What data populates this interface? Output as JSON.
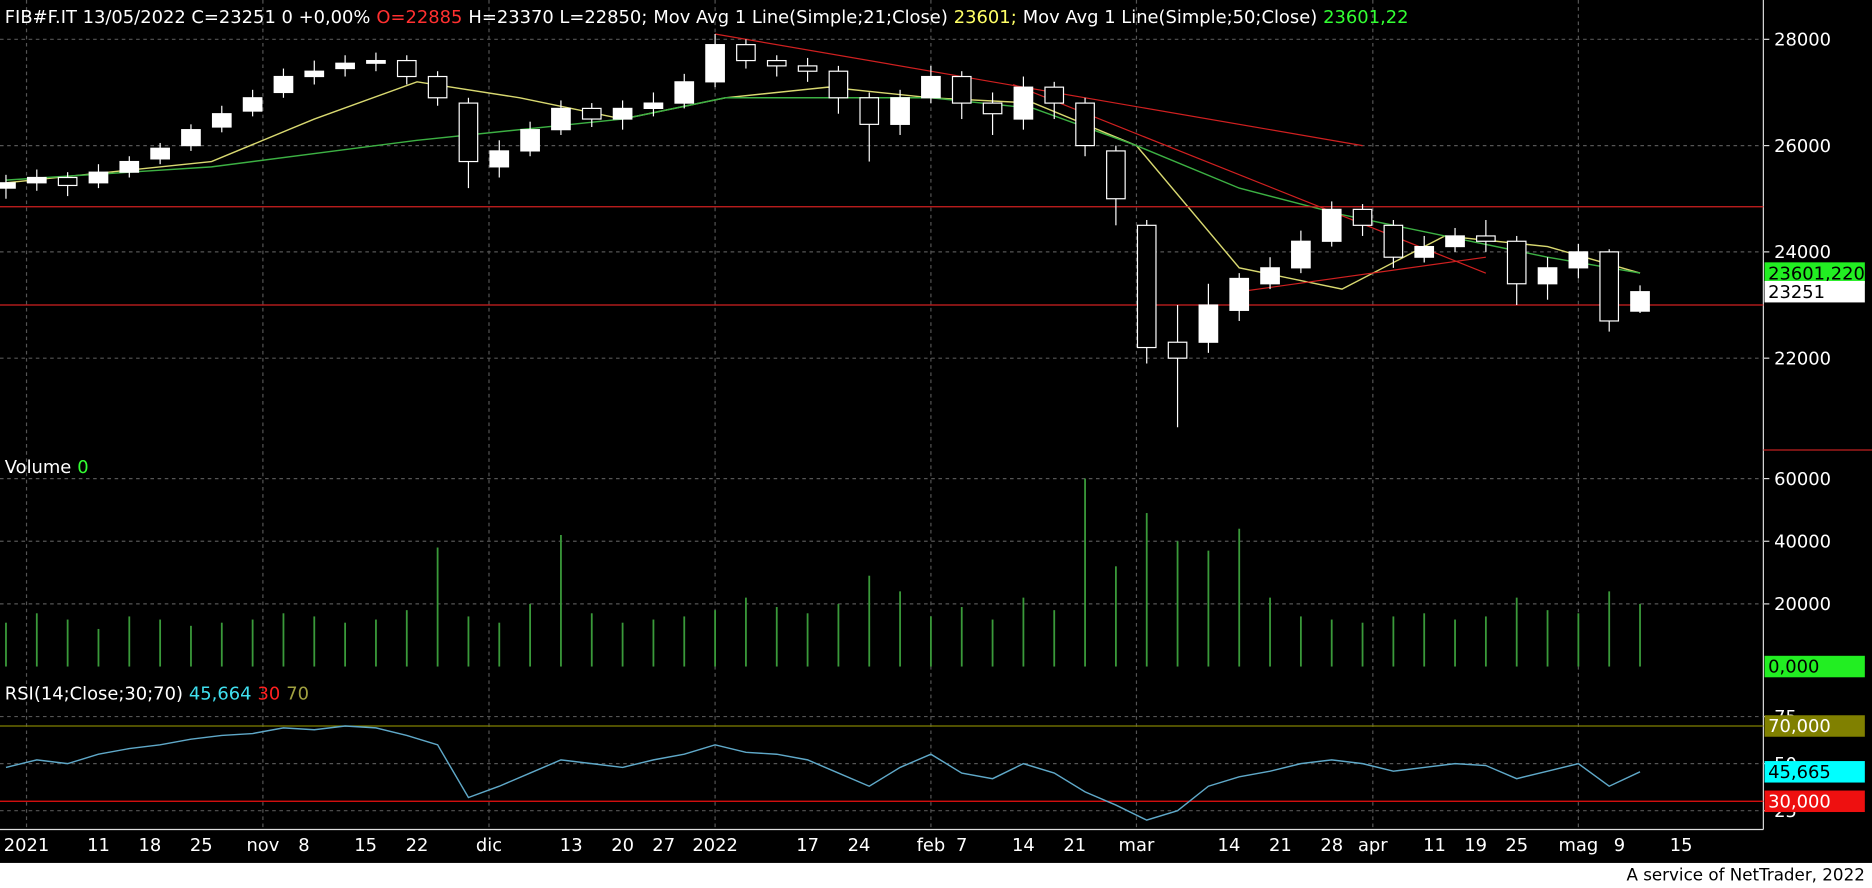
{
  "chart_data": [
    {
      "type": "candlestick",
      "title_parts": [
        {
          "text": "FIB#F.IT 13/05/2022 C=23251 0 +0,00%",
          "color": "#ffffff"
        },
        {
          "text": "O=22885",
          "color": "#ff3030"
        },
        {
          "text": "H=23370 L=22850;",
          "color": "#ffffff"
        },
        {
          "text": "Mov Avg 1 Line(Simple;21;Close)",
          "color": "#ffffff"
        },
        {
          "text": "23601;",
          "color": "#ffff66"
        },
        {
          "text": "Mov Avg 1 Line(Simple;50;Close)",
          "color": "#ffffff"
        },
        {
          "text": "23601,22",
          "color": "#33ff33"
        }
      ],
      "xlim": [
        0,
        171
      ],
      "ylim": [
        20250,
        28740
      ],
      "yticks": [
        22000,
        24000,
        26000,
        28000
      ],
      "x": [
        0,
        3,
        6,
        9,
        12,
        15,
        18,
        21,
        24,
        27,
        30,
        33,
        36,
        39,
        42,
        45,
        48,
        51,
        54,
        57,
        60,
        63,
        66,
        69,
        72,
        75,
        78,
        81,
        84,
        87,
        90,
        93,
        96,
        99,
        102,
        105,
        108,
        111,
        114,
        117,
        120,
        123,
        126,
        129,
        132,
        135,
        138,
        141,
        144,
        147,
        150,
        153,
        156,
        159
      ],
      "open": [
        25200,
        25300,
        25400,
        25300,
        25500,
        25750,
        26000,
        26350,
        26650,
        27000,
        27300,
        27450,
        27550,
        27600,
        27300,
        26800,
        25600,
        25900,
        26300,
        26700,
        26500,
        26700,
        26800,
        27200,
        27900,
        27600,
        27500,
        27400,
        26900,
        26400,
        26900,
        27300,
        26800,
        26500,
        27100,
        26800,
        25900,
        24500,
        22300,
        22300,
        22900,
        23400,
        23700,
        24200,
        24800,
        24500,
        23900,
        24100,
        24300,
        24200,
        23400,
        23700,
        24000,
        22885
      ],
      "high": [
        25450,
        25550,
        25500,
        25650,
        25800,
        26050,
        26400,
        26750,
        27050,
        27450,
        27600,
        27700,
        27750,
        27700,
        27400,
        26900,
        26100,
        26450,
        26850,
        26800,
        26850,
        27000,
        27350,
        28100,
        28000,
        27700,
        27650,
        27500,
        27000,
        27050,
        27500,
        27400,
        27000,
        27300,
        27200,
        26900,
        26000,
        24600,
        23000,
        23400,
        23600,
        23900,
        24400,
        24950,
        24900,
        24600,
        24300,
        24450,
        24600,
        24300,
        23900,
        24150,
        24050,
        23370
      ],
      "low": [
        25000,
        25150,
        25050,
        25200,
        25400,
        25650,
        25900,
        26250,
        26550,
        26900,
        27150,
        27300,
        27400,
        27150,
        26750,
        25200,
        25400,
        25800,
        26200,
        26350,
        26300,
        26550,
        26700,
        27100,
        27450,
        27300,
        27200,
        26600,
        25700,
        26200,
        26800,
        26500,
        26200,
        26300,
        26500,
        25800,
        24500,
        21900,
        20700,
        22100,
        22700,
        23300,
        23600,
        24100,
        24300,
        23700,
        23800,
        24000,
        24000,
        23000,
        23100,
        23500,
        22500,
        22850
      ],
      "close": [
        25300,
        25400,
        25250,
        25500,
        25700,
        25950,
        26300,
        26600,
        26900,
        27300,
        27400,
        27550,
        27600,
        27300,
        26900,
        25700,
        25900,
        26300,
        26700,
        26500,
        26700,
        26800,
        27200,
        27900,
        27600,
        27500,
        27400,
        26900,
        26400,
        26900,
        27300,
        26800,
        26600,
        27100,
        26800,
        26000,
        25000,
        22200,
        22000,
        23000,
        23500,
        23700,
        24200,
        24800,
        24500,
        23900,
        24100,
        24300,
        24200,
        23400,
        23700,
        24000,
        22700,
        23251
      ],
      "series": [
        {
          "color": "#d8d870",
          "x": [
            0,
            10,
            20,
            30,
            40,
            50,
            60,
            70,
            80,
            90,
            100,
            110,
            120,
            130,
            140,
            150,
            159
          ],
          "values": [
            25300,
            25500,
            25700,
            26500,
            27200,
            26900,
            26500,
            26900,
            27100,
            26900,
            26800,
            26000,
            23700,
            23300,
            24300,
            24100,
            23601
          ]
        },
        {
          "color": "#3cb043",
          "x": [
            0,
            20,
            40,
            60,
            70,
            90,
            100,
            110,
            120,
            130,
            140,
            150,
            159
          ],
          "values": [
            25350,
            25600,
            26100,
            26500,
            26900,
            26900,
            26700,
            26000,
            25200,
            24700,
            24300,
            23900,
            23601.22
          ]
        }
      ],
      "hlines": [
        24850,
        23000
      ],
      "line_color": "#d02020",
      "trendlines": [
        {
          "x": [
            69,
            132
          ],
          "y": [
            28100,
            26000
          ]
        },
        {
          "x": [
            98,
            144
          ],
          "y": [
            27150,
            23600
          ]
        },
        {
          "x": [
            120,
            144
          ],
          "y": [
            23250,
            23900
          ]
        }
      ],
      "badges": [
        {
          "value": 23601.22,
          "label": "23601,220",
          "color": "#22ee22"
        },
        {
          "value": 23251,
          "label": "23251",
          "color": "#ffffff"
        }
      ]
    },
    {
      "type": "bar",
      "title_parts": [
        {
          "text": "Volume",
          "color": "#ffffff"
        },
        {
          "text": "0",
          "color": "#33ff33"
        }
      ],
      "xlim": [
        0,
        171
      ],
      "ylim": [
        -4400,
        68000
      ],
      "yticks": [
        20000,
        40000,
        60000
      ],
      "color": "#3a9a3a",
      "x": [
        0,
        3,
        6,
        9,
        12,
        15,
        18,
        21,
        24,
        27,
        30,
        33,
        36,
        39,
        42,
        45,
        48,
        51,
        54,
        57,
        60,
        63,
        66,
        69,
        72,
        75,
        78,
        81,
        84,
        87,
        90,
        93,
        96,
        99,
        102,
        105,
        108,
        111,
        114,
        117,
        120,
        123,
        126,
        129,
        132,
        135,
        138,
        141,
        144,
        147,
        150,
        153,
        156,
        159
      ],
      "values": [
        14000,
        17000,
        15000,
        12000,
        16000,
        15000,
        13000,
        14000,
        15000,
        17000,
        16000,
        14000,
        15000,
        18000,
        38000,
        16000,
        14000,
        20000,
        42000,
        17000,
        14000,
        15000,
        16000,
        18000,
        22000,
        19000,
        17000,
        20000,
        29000,
        24000,
        16000,
        19000,
        15000,
        22000,
        18000,
        60000,
        32000,
        49000,
        40000,
        37000,
        44000,
        22000,
        16000,
        15000,
        14000,
        16000,
        17000,
        15000,
        16000,
        22000,
        18000,
        17000,
        24000,
        20000
      ],
      "badges": [
        {
          "value": 0,
          "label": "0,000",
          "color": "#22ee22"
        }
      ]
    },
    {
      "type": "line",
      "title_parts": [
        {
          "text": "RSI(14;Close;30;70)",
          "color": "#ffffff"
        },
        {
          "text": "45,664",
          "color": "#40e0f0"
        },
        {
          "text": "30",
          "color": "#ff2020"
        },
        {
          "text": "70",
          "color": "#a0a040"
        }
      ],
      "xlim": [
        0,
        171
      ],
      "ylim": [
        15,
        93
      ],
      "yticks": [
        25,
        50,
        75
      ],
      "color": "#5fa8c8",
      "x": [
        0,
        3,
        6,
        9,
        12,
        15,
        18,
        21,
        24,
        27,
        30,
        33,
        36,
        39,
        42,
        45,
        48,
        51,
        54,
        57,
        60,
        63,
        66,
        69,
        72,
        75,
        78,
        81,
        84,
        87,
        90,
        93,
        96,
        99,
        102,
        105,
        108,
        111,
        114,
        117,
        120,
        123,
        126,
        129,
        132,
        135,
        138,
        141,
        144,
        147,
        150,
        153,
        156,
        159
      ],
      "values": [
        48,
        52,
        50,
        55,
        58,
        60,
        63,
        65,
        66,
        69,
        68,
        70,
        69,
        65,
        60,
        32,
        38,
        45,
        52,
        50,
        48,
        52,
        55,
        60,
        56,
        55,
        52,
        45,
        38,
        48,
        55,
        45,
        42,
        50,
        45,
        35,
        28,
        20,
        25,
        38,
        43,
        46,
        50,
        52,
        50,
        46,
        48,
        50,
        49,
        42,
        46,
        50,
        38,
        45.664
      ],
      "levels": [
        {
          "value": 70,
          "label": "70,000",
          "color": "#808000"
        },
        {
          "value": 30,
          "label": "30,000",
          "color": "#ee1010"
        }
      ],
      "badges": [
        {
          "value": 45.665,
          "label": "45,665",
          "color": "#00ffff"
        }
      ],
      "xticks": [
        {
          "value": 2,
          "label": "2021"
        },
        {
          "value": 9,
          "label": "11"
        },
        {
          "value": 14,
          "label": "18"
        },
        {
          "value": 19,
          "label": "25"
        },
        {
          "value": 25,
          "label": "nov"
        },
        {
          "value": 29,
          "label": "8"
        },
        {
          "value": 35,
          "label": "15"
        },
        {
          "value": 40,
          "label": "22"
        },
        {
          "value": 47,
          "label": "dic"
        },
        {
          "value": 55,
          "label": "13"
        },
        {
          "value": 60,
          "label": "20"
        },
        {
          "value": 64,
          "label": "27"
        },
        {
          "value": 69,
          "label": "2022"
        },
        {
          "value": 78,
          "label": "17"
        },
        {
          "value": 83,
          "label": "24"
        },
        {
          "value": 90,
          "label": "feb"
        },
        {
          "value": 93,
          "label": "7"
        },
        {
          "value": 99,
          "label": "14"
        },
        {
          "value": 104,
          "label": "21"
        },
        {
          "value": 110,
          "label": "mar"
        },
        {
          "value": 119,
          "label": "14"
        },
        {
          "value": 124,
          "label": "21"
        },
        {
          "value": 129,
          "label": "28"
        },
        {
          "value": 133,
          "label": "apr"
        },
        {
          "value": 139,
          "label": "11"
        },
        {
          "value": 143,
          "label": "19"
        },
        {
          "value": 147,
          "label": "25"
        },
        {
          "value": 153,
          "label": "mag"
        },
        {
          "value": 157,
          "label": "9"
        },
        {
          "value": 163,
          "label": "15"
        }
      ]
    }
  ],
  "footer": "A service of NetTrader, 2022"
}
